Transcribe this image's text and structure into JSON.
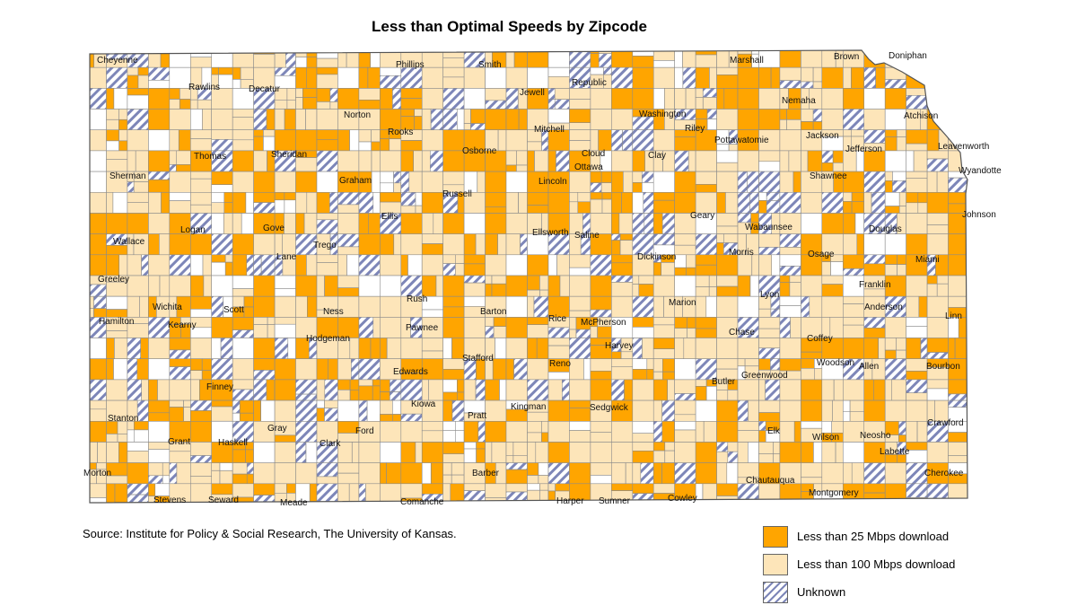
{
  "title": "Less than Optimal Speeds by Zipcode",
  "source": "Source: Institute for Policy & Social Research, The University of Kansas.",
  "colors": {
    "under25": "#ffa500",
    "under100": "#fde5b9",
    "unknown_stripe": "#7d86b8",
    "none": "#ffffff",
    "border": "#8a8a8a"
  },
  "legend": [
    {
      "label": "Less than 25 Mbps download",
      "category": "under25"
    },
    {
      "label": "Less than 100 Mbps download",
      "category": "under100"
    },
    {
      "label": "Unknown",
      "category": "unknown"
    }
  ],
  "counties": [
    "Cheyenne",
    "Rawlins",
    "Decatur",
    "Norton",
    "Phillips",
    "Smith",
    "Jewell",
    "Republic",
    "Washington",
    "Marshall",
    "Nemaha",
    "Brown",
    "Doniphan",
    "Sherman",
    "Thomas",
    "Sheridan",
    "Graham",
    "Rooks",
    "Osborne",
    "Mitchell",
    "Cloud",
    "Clay",
    "Riley",
    "Pottawatomie",
    "Jackson",
    "Atchison",
    "Jefferson",
    "Leavenworth",
    "Wyandotte",
    "Wallace",
    "Logan",
    "Gove",
    "Trego",
    "Ellis",
    "Russell",
    "Lincoln",
    "Ottawa",
    "Saline",
    "Dickinson",
    "Geary",
    "Wabaunsee",
    "Shawnee",
    "Douglas",
    "Johnson",
    "Greeley",
    "Wichita",
    "Scott",
    "Lane",
    "Ness",
    "Rush",
    "Barton",
    "Ellsworth",
    "Rice",
    "McPherson",
    "Marion",
    "Morris",
    "Lyon",
    "Osage",
    "Franklin",
    "Miami",
    "Hamilton",
    "Kearny",
    "Finney",
    "Hodgeman",
    "Pawnee",
    "Stafford",
    "Reno",
    "Harvey",
    "Chase",
    "Coffey",
    "Anderson",
    "Linn",
    "Stanton",
    "Grant",
    "Haskell",
    "Gray",
    "Ford",
    "Edwards",
    "Kiowa",
    "Pratt",
    "Kingman",
    "Sedgwick",
    "Butler",
    "Greenwood",
    "Woodson",
    "Allen",
    "Bourbon",
    "Morton",
    "Stevens",
    "Seward",
    "Meade",
    "Clark",
    "Comanche",
    "Barber",
    "Harper",
    "Sumner",
    "Cowley",
    "Elk",
    "Chautauqua",
    "Wilson",
    "Neosho",
    "Labette",
    "Montgomery",
    "Crawford",
    "Cherokee"
  ]
}
